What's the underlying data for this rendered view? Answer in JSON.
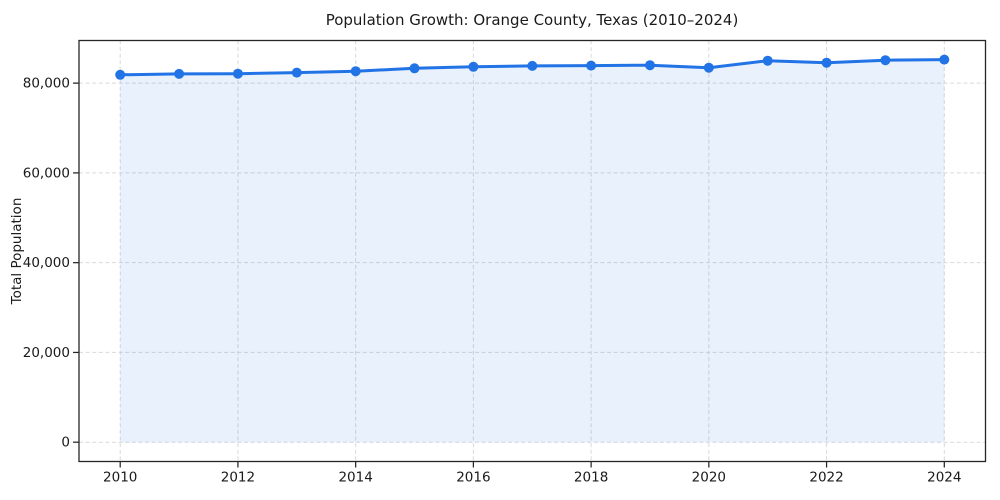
{
  "chart_data": {
    "type": "area",
    "title": "Population Growth: Orange County, Texas (2010–2024)",
    "xlabel": "",
    "ylabel": "Total Population",
    "x": [
      2010,
      2011,
      2012,
      2013,
      2014,
      2015,
      2016,
      2017,
      2018,
      2019,
      2020,
      2021,
      2022,
      2023,
      2024
    ],
    "series": [
      {
        "name": "Total Population",
        "values": [
          81850,
          82050,
          82100,
          82350,
          82650,
          83300,
          83650,
          83850,
          83900,
          84000,
          83450,
          85000,
          84550,
          85100,
          85250
        ]
      }
    ],
    "xticks": [
      2010,
      2012,
      2014,
      2016,
      2018,
      2020,
      2022,
      2024
    ],
    "yticks": [
      0,
      20000,
      40000,
      60000,
      80000
    ],
    "ytick_labels": [
      "0",
      "20,000",
      "40,000",
      "60,000",
      "80,000"
    ],
    "xlim": [
      2009.3,
      2024.7
    ],
    "ylim": [
      -4300,
      89500
    ],
    "grid": true,
    "grid_style": "dashed",
    "legend": false,
    "marker": "circle",
    "fill_to_zero": true,
    "colors": {
      "line": "#2273e6",
      "marker": "#2273e6",
      "fill": "rgba(34,115,230,0.10)",
      "grid": "#d9d9d9",
      "spine": "#262626",
      "tick": "#262626",
      "text": "#1a1a1a",
      "background": "#ffffff"
    }
  }
}
